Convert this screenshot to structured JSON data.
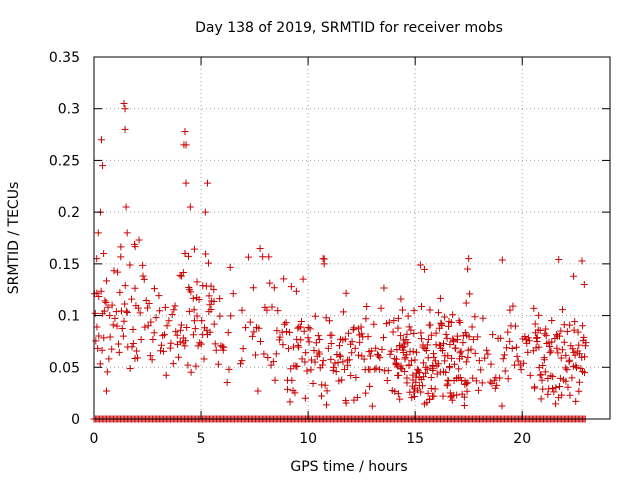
{
  "chart_data": {
    "type": "scatter",
    "title": "Day 138 of 2019, SRMTID for receiver mobs",
    "xlabel": "GPS time / hours",
    "ylabel": "SRMTID / TECUs",
    "xlim": [
      0,
      24.1
    ],
    "ylim": [
      0,
      0.35
    ],
    "grid": true,
    "x_ticks": [
      "0",
      "5",
      "10",
      "15",
      "20"
    ],
    "x_tick_values": [
      0,
      5,
      10,
      15,
      20
    ],
    "y_ticks": [
      "0",
      "0.05",
      "0.1",
      "0.15",
      "0.2",
      "0.25",
      "0.3",
      "0.35"
    ],
    "y_tick_values": [
      0,
      0.05,
      0.1,
      0.15,
      0.2,
      0.25,
      0.3,
      0.35
    ],
    "marker": "+",
    "color": "#cc0000",
    "highlighted_points": [
      {
        "x": 0.2,
        "y": 0.18
      },
      {
        "x": 0.3,
        "y": 0.2
      },
      {
        "x": 0.35,
        "y": 0.27
      },
      {
        "x": 0.4,
        "y": 0.245
      },
      {
        "x": 0.45,
        "y": 0.16
      },
      {
        "x": 1.4,
        "y": 0.305
      },
      {
        "x": 1.45,
        "y": 0.3
      },
      {
        "x": 1.45,
        "y": 0.28
      },
      {
        "x": 1.5,
        "y": 0.205
      },
      {
        "x": 1.55,
        "y": 0.18
      },
      {
        "x": 4.2,
        "y": 0.265
      },
      {
        "x": 4.25,
        "y": 0.278
      },
      {
        "x": 4.3,
        "y": 0.265
      },
      {
        "x": 4.3,
        "y": 0.228
      },
      {
        "x": 4.5,
        "y": 0.205
      },
      {
        "x": 5.2,
        "y": 0.2
      },
      {
        "x": 5.3,
        "y": 0.228
      },
      {
        "x": 10.7,
        "y": 0.155
      },
      {
        "x": 10.75,
        "y": 0.15
      },
      {
        "x": 17.5,
        "y": 0.155
      },
      {
        "x": 17.45,
        "y": 0.145
      },
      {
        "x": 22.4,
        "y": 0.138
      },
      {
        "x": 22.9,
        "y": 0.13
      }
    ],
    "zero_band": {
      "y": 0,
      "x_start": 0,
      "x_end": 23.0
    },
    "seed": 138
  }
}
